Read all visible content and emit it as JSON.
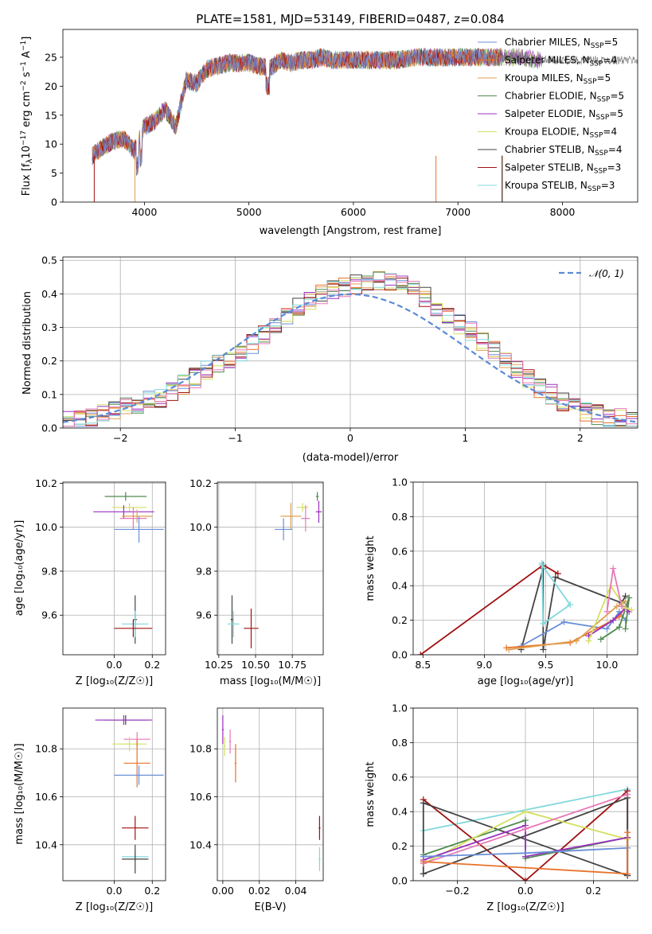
{
  "palette": {
    "Chabrier MILES": "#6a8fd8",
    "Salpeter MILES": "#e8722a",
    "Kroupa MILES": "#e0a050",
    "Chabrier ELODIE": "#4f8a4f",
    "Salpeter ELODIE": "#9b30c0",
    "Kroupa ELODIE": "#d4e060",
    "Chabrier STELIB": "#444444",
    "Salpeter STELIB": "#a01010",
    "Kroupa STELIB": "#80d8dc",
    "pink": "#e878b8",
    "normal_line": "#5b8ad6"
  },
  "chart_data": [
    {
      "id": "spectrum",
      "type": "line",
      "title": "PLATE=1581, MJD=53149, FIBERID=0487, z=0.084",
      "xlabel": "wavelength [Angstrom, rest frame]",
      "ylabel": "Flux [f",
      "ylabel_parts": [
        "Flux [f",
        "λ",
        "10",
        "−17",
        " erg cm",
        "−2",
        " s",
        "−1",
        " A",
        "−1",
        "]"
      ],
      "xlim": [
        3220,
        8720
      ],
      "ylim": [
        0,
        29.8
      ],
      "xticks": [
        4000,
        5000,
        6000,
        7000,
        8000
      ],
      "yticks": [
        0,
        5,
        10,
        15,
        20,
        25
      ],
      "grid": false,
      "legend": "top-right",
      "legend_entries": [
        {
          "name": "Chabrier MILES",
          "nssp": "5"
        },
        {
          "name": "Salpeter MILES",
          "nssp": "4"
        },
        {
          "name": "Kroupa MILES",
          "nssp": "5"
        },
        {
          "name": "Chabrier ELODIE",
          "nssp": "5"
        },
        {
          "name": "Salpeter ELODIE",
          "nssp": "5"
        },
        {
          "name": "Kroupa ELODIE",
          "nssp": "4"
        },
        {
          "name": "Chabrier STELIB",
          "nssp": "4"
        },
        {
          "name": "Salpeter STELIB",
          "nssp": "3"
        },
        {
          "name": "Kroupa STELIB",
          "nssp": "3"
        }
      ],
      "legend_sub": "SSP",
      "nssp_prefix": "N",
      "spectrum_shape": {
        "x": [
          3500,
          3600,
          3700,
          3800,
          3900,
          4000,
          4100,
          4200,
          4300,
          4400,
          4500,
          4600,
          4700,
          4800,
          4900,
          5000,
          5100,
          5200,
          5300,
          5400,
          5500,
          5600,
          5700,
          5800,
          5900,
          6000,
          6200,
          6400,
          6600,
          6800,
          7000,
          7200,
          7400,
          7600,
          7800
        ],
        "y": [
          8,
          9.5,
          10.5,
          11,
          9,
          13,
          14,
          16,
          13,
          21,
          20.5,
          23,
          23.5,
          24,
          24,
          24,
          23.5,
          23,
          24.5,
          24,
          24.5,
          24.5,
          25,
          24.5,
          24.5,
          24.5,
          24.5,
          24.5,
          25,
          25,
          25,
          25,
          25,
          25,
          24.5
        ]
      }
    },
    {
      "id": "residuals",
      "type": "histogram",
      "xlabel": "(data-model)/error",
      "ylabel": "Normed distribution",
      "xlim": [
        -2.5,
        2.5
      ],
      "ylim": [
        0,
        0.51
      ],
      "xticks": [
        -2,
        -1,
        0,
        1,
        2
      ],
      "xticklabels": [
        "−2",
        "−1",
        "0",
        "1",
        "2"
      ],
      "yticks": [
        0.0,
        0.1,
        0.2,
        0.3,
        0.4,
        0.5
      ],
      "yticklabels": [
        "0.0",
        "0.1",
        "0.2",
        "0.3",
        "0.4",
        "0.5"
      ],
      "grid": true,
      "legend": "top-right",
      "legend_label": "𝒩(0, 1)",
      "bin_width": 0.1,
      "bin_start": -2.5,
      "base": [
        0.02,
        0.03,
        0.03,
        0.04,
        0.05,
        0.06,
        0.07,
        0.08,
        0.09,
        0.11,
        0.13,
        0.15,
        0.17,
        0.19,
        0.2,
        0.22,
        0.25,
        0.28,
        0.31,
        0.34,
        0.36,
        0.38,
        0.4,
        0.41,
        0.42,
        0.43,
        0.43,
        0.44,
        0.44,
        0.43,
        0.42,
        0.39,
        0.36,
        0.33,
        0.31,
        0.29,
        0.26,
        0.23,
        0.2,
        0.18,
        0.15,
        0.12,
        0.1,
        0.08,
        0.06,
        0.05,
        0.04,
        0.03,
        0.03,
        0.02
      ]
    },
    {
      "id": "age-vs-Z",
      "type": "scatter-errorbar",
      "xlabel": "Z [log₁₀(Z/Z☉)]",
      "ylabel": "age  [log₁₀(age/yr)]",
      "xlim": [
        -0.27,
        0.27
      ],
      "ylim": [
        9.42,
        10.205
      ],
      "xticks": [
        0.0,
        0.2
      ],
      "xticklabels": [
        "0.0",
        "0.2"
      ],
      "yticks": [
        9.6,
        9.8,
        10.0,
        10.2
      ],
      "yticklabels": [
        "9.6",
        "9.8",
        "10.0",
        "10.2"
      ],
      "grid": true,
      "points": [
        {
          "s": "Chabrier ELODIE",
          "x": 0.06,
          "y": 10.14,
          "ex": 0.11,
          "ey": 0.02
        },
        {
          "s": "Kroupa ELODIE",
          "x": 0.08,
          "y": 10.09,
          "ex": 0.09,
          "ey": 0.02
        },
        {
          "s": "Salpeter ELODIE",
          "x": 0.05,
          "y": 10.07,
          "ex": 0.16,
          "ey": 0.03
        },
        {
          "s": "Kroupa MILES",
          "x": 0.12,
          "y": 10.05,
          "ex": 0.08,
          "ey": 0.03
        },
        {
          "s": "pink",
          "x": 0.1,
          "y": 10.04,
          "ex": 0.07,
          "ey": 0.05
        },
        {
          "s": "Chabrier MILES",
          "x": 0.13,
          "y": 9.99,
          "ex": 0.13,
          "ey": 0.06
        },
        {
          "s": "Chabrier STELIB",
          "x": 0.11,
          "y": 9.58,
          "ex": 0.01,
          "ey": 0.11
        },
        {
          "s": "Kroupa STELIB",
          "x": 0.11,
          "y": 9.56,
          "ex": 0.07,
          "ey": 0.06
        },
        {
          "s": "Salpeter STELIB",
          "x": 0.1,
          "y": 9.54,
          "ex": 0.1,
          "ey": 0.04
        }
      ]
    },
    {
      "id": "age-vs-mass",
      "type": "scatter-errorbar",
      "xlabel": "mass [log₁₀(M/M☉)]",
      "ylabel": "",
      "xlim": [
        10.24,
        10.96
      ],
      "ylim": [
        9.42,
        10.205
      ],
      "xticks": [
        10.25,
        10.5,
        10.75
      ],
      "xticklabels": [
        "10.25",
        "10.50",
        "10.75"
      ],
      "yticks": [
        9.6,
        9.8,
        10.0,
        10.2
      ],
      "yticklabels": [
        "9.6",
        "9.8",
        "10.0",
        "10.2"
      ],
      "grid": true,
      "points": [
        {
          "s": "Chabrier ELODIE",
          "x": 10.92,
          "y": 10.14,
          "ex": 0.01,
          "ey": 0.02
        },
        {
          "s": "Kroupa ELODIE",
          "x": 10.82,
          "y": 10.09,
          "ex": 0.04,
          "ey": 0.02
        },
        {
          "s": "Salpeter ELODIE",
          "x": 10.93,
          "y": 10.07,
          "ex": 0.02,
          "ey": 0.05
        },
        {
          "s": "Kroupa MILES",
          "x": 10.74,
          "y": 10.05,
          "ex": 0.07,
          "ey": 0.06
        },
        {
          "s": "pink",
          "x": 10.84,
          "y": 10.04,
          "ex": 0.03,
          "ey": 0.06
        },
        {
          "s": "Chabrier MILES",
          "x": 10.69,
          "y": 9.99,
          "ex": 0.06,
          "ey": 0.05
        },
        {
          "s": "Chabrier STELIB",
          "x": 10.34,
          "y": 9.58,
          "ex": 0.01,
          "ey": 0.11
        },
        {
          "s": "Kroupa STELIB",
          "x": 10.35,
          "y": 9.56,
          "ex": 0.04,
          "ey": 0.06
        },
        {
          "s": "Salpeter STELIB",
          "x": 10.47,
          "y": 9.54,
          "ex": 0.05,
          "ey": 0.09
        }
      ]
    },
    {
      "id": "weight-vs-age",
      "type": "line",
      "xlabel": "age  [log₁₀(age/yr)]",
      "ylabel": "mass weight",
      "xlim": [
        8.42,
        10.25
      ],
      "ylim": [
        0,
        1.0
      ],
      "xticks": [
        8.5,
        9.0,
        9.5,
        10.0
      ],
      "xticklabels": [
        "8.5",
        "9.0",
        "9.5",
        "10.0"
      ],
      "yticks": [
        0.0,
        0.2,
        0.4,
        0.6,
        0.8,
        1.0
      ],
      "yticklabels": [
        "0.0",
        "0.2",
        "0.4",
        "0.6",
        "0.8",
        "1.0"
      ],
      "grid": true,
      "series": [
        {
          "s": "Salpeter STELIB",
          "x": [
            8.48,
            9.48,
            9.6
          ],
          "y": [
            0.0,
            0.52,
            0.47
          ]
        },
        {
          "s": "Chabrier STELIB",
          "x": [
            9.3,
            9.48,
            9.48,
            9.58,
            10.12,
            10.15
          ],
          "y": [
            0.03,
            0.5,
            0.03,
            0.45,
            0.3,
            0.34
          ]
        },
        {
          "s": "Kroupa STELIB",
          "x": [
            9.47,
            9.7,
            9.48,
            9.47
          ],
          "y": [
            0.52,
            0.29,
            0.18,
            0.53
          ]
        },
        {
          "s": "Chabrier MILES",
          "x": [
            9.3,
            9.65,
            10.0,
            10.1,
            10.15
          ],
          "y": [
            0.05,
            0.19,
            0.15,
            0.25,
            0.2
          ]
        },
        {
          "s": "Salpeter MILES",
          "x": [
            9.18,
            9.7,
            10.1,
            10.15
          ],
          "y": [
            0.04,
            0.07,
            0.22,
            0.28
          ]
        },
        {
          "s": "Kroupa MILES",
          "x": [
            9.2,
            9.75,
            10.08,
            10.15
          ],
          "y": [
            0.03,
            0.08,
            0.28,
            0.31
          ]
        },
        {
          "s": "Chabrier ELODIE",
          "x": [
            9.95,
            10.1,
            10.18,
            10.15
          ],
          "y": [
            0.09,
            0.16,
            0.33,
            0.15
          ]
        },
        {
          "s": "Salpeter ELODIE",
          "x": [
            9.85,
            10.05,
            10.15,
            10.18
          ],
          "y": [
            0.11,
            0.2,
            0.27,
            0.25
          ]
        },
        {
          "s": "Kroupa ELODIE",
          "x": [
            9.85,
            10.03,
            10.15,
            10.2
          ],
          "y": [
            0.08,
            0.4,
            0.27,
            0.26
          ]
        },
        {
          "s": "pink",
          "x": [
            10.0,
            10.05,
            10.12
          ],
          "y": [
            0.25,
            0.5,
            0.28
          ]
        }
      ]
    },
    {
      "id": "mass-vs-Z",
      "type": "scatter-errorbar",
      "xlabel": "Z [log₁₀(Z/Z☉)]",
      "ylabel": "mass [log₁₀(M/M☉)]",
      "xlim": [
        -0.27,
        0.27
      ],
      "ylim": [
        10.25,
        10.97
      ],
      "xticks": [
        0.0,
        0.2
      ],
      "xticklabels": [
        "0.0",
        "0.2"
      ],
      "yticks": [
        10.4,
        10.6,
        10.8
      ],
      "yticklabels": [
        "10.4",
        "10.6",
        "10.8"
      ],
      "grid": true,
      "points": [
        {
          "s": "Chabrier STELIB",
          "x": 0.06,
          "y": 10.92,
          "ex": 0.11,
          "ey": 0.02
        },
        {
          "s": "Salpeter ELODIE",
          "x": 0.05,
          "y": 10.92,
          "ex": 0.15,
          "ey": 0.02
        },
        {
          "s": "pink",
          "x": 0.12,
          "y": 10.84,
          "ex": 0.07,
          "ey": 0.03
        },
        {
          "s": "Kroupa ELODIE",
          "x": 0.08,
          "y": 10.82,
          "ex": 0.09,
          "ey": 0.03
        },
        {
          "s": "Salpeter MILES",
          "x": 0.12,
          "y": 10.74,
          "ex": 0.07,
          "ey": 0.1
        },
        {
          "s": "Chabrier MILES",
          "x": 0.13,
          "y": 10.69,
          "ex": 0.13,
          "ey": 0.04
        },
        {
          "s": "Salpeter STELIB",
          "x": 0.11,
          "y": 10.47,
          "ex": 0.07,
          "ey": 0.05
        },
        {
          "s": "Kroupa STELIB",
          "x": 0.11,
          "y": 10.35,
          "ex": 0.07,
          "ey": 0.02
        },
        {
          "s": "Chabrier STELIB",
          "x": 0.11,
          "y": 10.34,
          "ex": 0.07,
          "ey": 0.06
        }
      ]
    },
    {
      "id": "mass-vs-ebv",
      "type": "scatter-errorbar",
      "xlabel": "E(B-V)",
      "ylabel": "",
      "xlim": [
        -0.003,
        0.055
      ],
      "ylim": [
        10.25,
        10.97
      ],
      "xticks": [
        0.0,
        0.02,
        0.04
      ],
      "xticklabels": [
        "0.00",
        "0.02",
        "0.04"
      ],
      "yticks": [
        10.4,
        10.6,
        10.8
      ],
      "yticklabels": [
        "10.4",
        "10.6",
        "10.8"
      ],
      "grid": true,
      "points": [
        {
          "s": "Salpeter ELODIE",
          "x": 0.0,
          "y": 10.88,
          "ex": 0.0005,
          "ey": 0.06
        },
        {
          "s": "pink",
          "x": 0.004,
          "y": 10.83,
          "ex": 0.0005,
          "ey": 0.05
        },
        {
          "s": "Kroupa ELODIE",
          "x": 0.001,
          "y": 10.81,
          "ex": 0.0005,
          "ey": 0.04
        },
        {
          "s": "Salpeter MILES",
          "x": 0.007,
          "y": 10.74,
          "ex": 0.0005,
          "ey": 0.08
        },
        {
          "s": "Salpeter STELIB",
          "x": 0.053,
          "y": 10.47,
          "ex": 0.0005,
          "ey": 0.05
        },
        {
          "s": "Kroupa STELIB",
          "x": 0.053,
          "y": 10.34,
          "ex": 0.0005,
          "ey": 0.05
        }
      ]
    },
    {
      "id": "weight-vs-Z",
      "type": "line",
      "xlabel": "Z [log₁₀(Z/Z☉)]",
      "ylabel": "mass weight",
      "xlim": [
        -0.33,
        0.33
      ],
      "ylim": [
        0,
        1.0
      ],
      "xticks": [
        -0.2,
        0.0,
        0.2
      ],
      "xticklabels": [
        "−0.2",
        "0.0",
        "0.2"
      ],
      "yticks": [
        0.0,
        0.2,
        0.4,
        0.6,
        0.8,
        1.0
      ],
      "yticklabels": [
        "0.0",
        "0.2",
        "0.4",
        "0.6",
        "0.8",
        "1.0"
      ],
      "grid": true,
      "series": [
        {
          "s": "Kroupa STELIB",
          "x": [
            -0.3,
            0.3,
            0.3
          ],
          "y": [
            0.29,
            0.53,
            0.03
          ]
        },
        {
          "s": "Salpeter STELIB",
          "x": [
            -0.3,
            0.0,
            0.3,
            0.3
          ],
          "y": [
            0.47,
            0.0,
            0.52,
            0.03
          ]
        },
        {
          "s": "Chabrier STELIB",
          "x": [
            -0.3,
            0.3,
            0.3,
            -0.3,
            -0.3
          ],
          "y": [
            0.04,
            0.48,
            0.03,
            0.45,
            0.04
          ]
        },
        {
          "s": "Chabrier ELODIE",
          "x": [
            -0.3,
            0.0,
            0.0,
            0.3
          ],
          "y": [
            0.15,
            0.35,
            0.13,
            0.25
          ]
        },
        {
          "s": "Kroupa ELODIE",
          "x": [
            -0.3,
            0.0,
            0.3
          ],
          "y": [
            0.1,
            0.4,
            0.24
          ]
        },
        {
          "s": "Salpeter ELODIE",
          "x": [
            -0.3,
            0.0,
            0.0,
            0.3
          ],
          "y": [
            0.12,
            0.32,
            0.14,
            0.25
          ]
        },
        {
          "s": "pink",
          "x": [
            -0.3,
            0.0,
            0.3
          ],
          "y": [
            0.1,
            0.3,
            0.5
          ]
        },
        {
          "s": "Chabrier MILES",
          "x": [
            -0.3,
            0.0,
            0.3
          ],
          "y": [
            0.14,
            0.16,
            0.19
          ]
        },
        {
          "s": "Salpeter MILES",
          "x": [
            -0.3,
            0.3,
            0.3
          ],
          "y": [
            0.11,
            0.04,
            0.28
          ]
        }
      ]
    }
  ]
}
